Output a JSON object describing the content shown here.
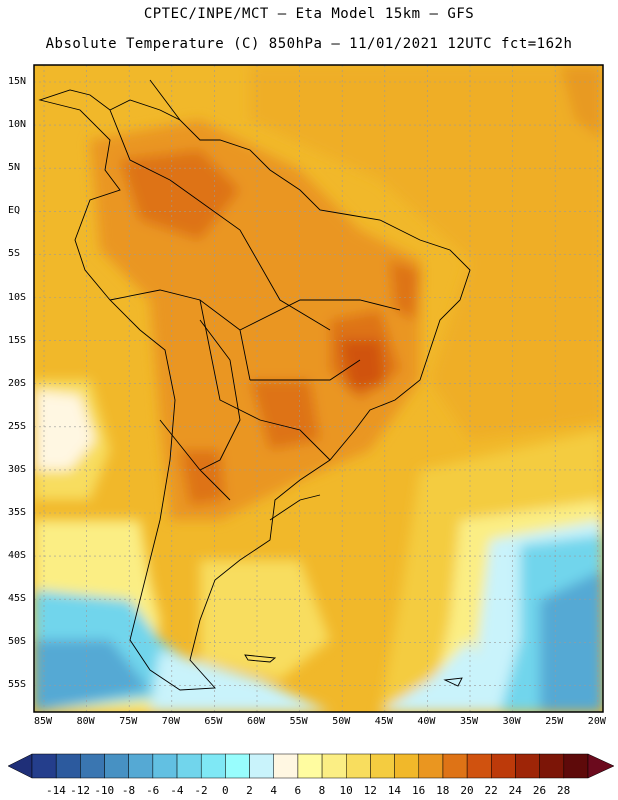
{
  "title": {
    "line1": "CPTEC/INPE/MCT —  Eta Model 15km — GFS",
    "line2": "Absolute Temperature (C) 850hPa — 11/01/2021 12UTC fct=162h"
  },
  "lat_labels": [
    "15N",
    "10N",
    "5N",
    "EQ",
    "5S",
    "10S",
    "15S",
    "20S",
    "25S",
    "30S",
    "35S",
    "40S",
    "45S",
    "50S",
    "55S"
  ],
  "lon_labels": [
    "85W",
    "80W",
    "75W",
    "70W",
    "65W",
    "60W",
    "55W",
    "50W",
    "45W",
    "40W",
    "35W",
    "30W",
    "25W",
    "20W"
  ],
  "colorbar": {
    "labels": [
      "-14",
      "-12",
      "-10",
      "-8",
      "-6",
      "-4",
      "-2",
      "0",
      "2",
      "4",
      "6",
      "8",
      "10",
      "12",
      "14",
      "16",
      "18",
      "20",
      "22",
      "24",
      "26",
      "28"
    ],
    "colors": [
      "#243e8c",
      "#2c5a9e",
      "#3a76b1",
      "#4791c3",
      "#55a9d4",
      "#62c0e2",
      "#71d5ec",
      "#7fe8f5",
      "#98fdfd",
      "#c9f3fb",
      "#fff7e2",
      "#fffca0",
      "#fbee84",
      "#f8dd5e",
      "#f4cc40",
      "#f1b82a",
      "#ea9620",
      "#de7316",
      "#d0520f",
      "#bd3a0a",
      "#9e2507",
      "#7c1507",
      "#5e0a0a"
    ],
    "under_color": "#1f2f78",
    "over_color": "#6b0a1d"
  }
}
